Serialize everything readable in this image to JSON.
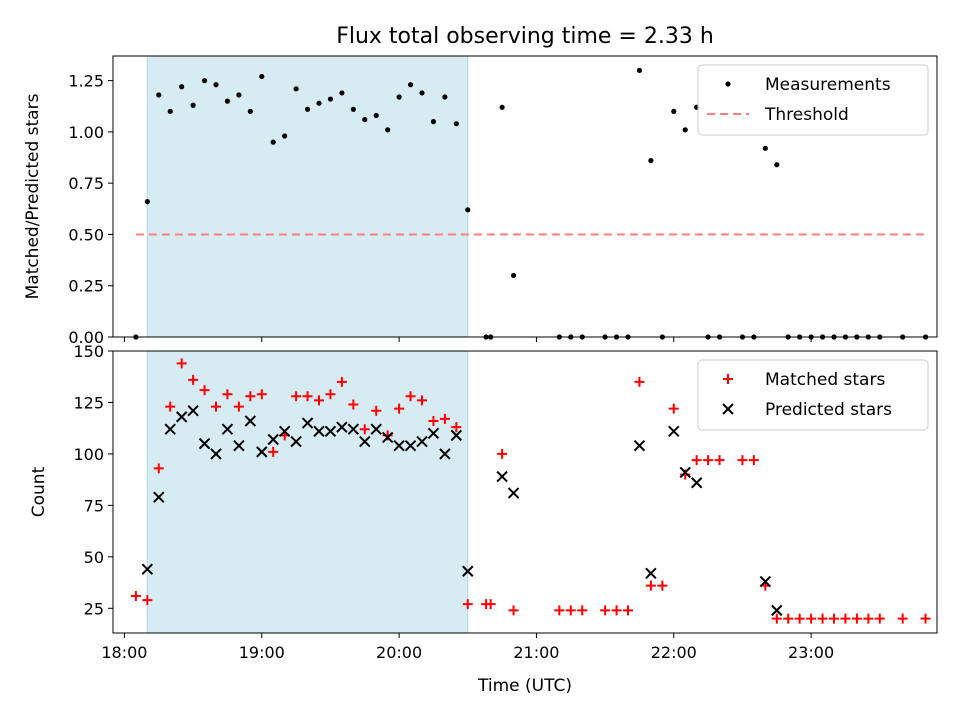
{
  "figure": {
    "title": "Flux total observing time = 2.33 h"
  },
  "shaded_interval": {
    "start": "18:10",
    "end": "20:30",
    "color": "#add8e6"
  },
  "chart_data": [
    {
      "panel": "top",
      "type": "scatter",
      "ylabel": "Matched/Predicted stars",
      "ylim": [
        0,
        1.37
      ],
      "yticks": [
        0.0,
        0.25,
        0.5,
        0.75,
        1.0,
        1.25
      ],
      "ytick_labels": [
        "0.00",
        "0.25",
        "0.50",
        "0.75",
        "1.00",
        "1.25"
      ],
      "legend_position": "top-right",
      "series": [
        {
          "name": "Measurements",
          "marker": "dot",
          "color": "#000000",
          "points": [
            [
              "18:05",
              0.0
            ],
            [
              "18:10",
              0.66
            ],
            [
              "18:15",
              1.18
            ],
            [
              "18:20",
              1.1
            ],
            [
              "18:25",
              1.22
            ],
            [
              "18:30",
              1.13
            ],
            [
              "18:35",
              1.25
            ],
            [
              "18:40",
              1.23
            ],
            [
              "18:45",
              1.15
            ],
            [
              "18:50",
              1.18
            ],
            [
              "18:55",
              1.1
            ],
            [
              "19:00",
              1.27
            ],
            [
              "19:05",
              0.95
            ],
            [
              "19:10",
              0.98
            ],
            [
              "19:15",
              1.21
            ],
            [
              "19:20",
              1.11
            ],
            [
              "19:25",
              1.14
            ],
            [
              "19:30",
              1.16
            ],
            [
              "19:35",
              1.19
            ],
            [
              "19:40",
              1.11
            ],
            [
              "19:45",
              1.06
            ],
            [
              "19:50",
              1.08
            ],
            [
              "19:55",
              1.01
            ],
            [
              "20:00",
              1.17
            ],
            [
              "20:05",
              1.23
            ],
            [
              "20:10",
              1.19
            ],
            [
              "20:15",
              1.05
            ],
            [
              "20:20",
              1.17
            ],
            [
              "20:25",
              1.04
            ],
            [
              "20:30",
              0.62
            ],
            [
              "20:38",
              0.0
            ],
            [
              "20:40",
              0.0
            ],
            [
              "20:45",
              1.12
            ],
            [
              "20:50",
              0.3
            ],
            [
              "21:10",
              0.0
            ],
            [
              "21:15",
              0.0
            ],
            [
              "21:20",
              0.0
            ],
            [
              "21:30",
              0.0
            ],
            [
              "21:35",
              0.0
            ],
            [
              "21:40",
              0.0
            ],
            [
              "21:45",
              1.3
            ],
            [
              "21:50",
              0.86
            ],
            [
              "21:55",
              0.0
            ],
            [
              "22:00",
              1.1
            ],
            [
              "22:05",
              1.01
            ],
            [
              "22:10",
              1.12
            ],
            [
              "22:15",
              0.0
            ],
            [
              "22:20",
              0.0
            ],
            [
              "22:30",
              0.0
            ],
            [
              "22:35",
              0.0
            ],
            [
              "22:40",
              0.92
            ],
            [
              "22:45",
              0.84
            ],
            [
              "22:50",
              0.0
            ],
            [
              "22:55",
              0.0
            ],
            [
              "23:00",
              0.0
            ],
            [
              "23:05",
              0.0
            ],
            [
              "23:10",
              0.0
            ],
            [
              "23:15",
              0.0
            ],
            [
              "23:20",
              0.0
            ],
            [
              "23:25",
              0.0
            ],
            [
              "23:30",
              0.0
            ],
            [
              "23:40",
              0.0
            ],
            [
              "23:50",
              0.0
            ]
          ]
        },
        {
          "name": "Threshold",
          "marker": "dashed-line",
          "color": "#ff7f7f",
          "points": [
            [
              "18:05",
              0.5
            ],
            [
              "23:50",
              0.5
            ]
          ]
        }
      ]
    },
    {
      "panel": "bottom",
      "type": "scatter",
      "ylabel": "Count",
      "xlabel": "Time (UTC)",
      "ylim": [
        13,
        150
      ],
      "yticks": [
        25,
        50,
        75,
        100,
        125,
        150
      ],
      "ytick_labels": [
        "25",
        "50",
        "75",
        "100",
        "125",
        "150"
      ],
      "xlim": [
        "17:55",
        "23:55"
      ],
      "xticks": [
        "18:00",
        "19:00",
        "20:00",
        "21:00",
        "22:00",
        "23:00"
      ],
      "xtick_labels": [
        "18:00",
        "19:00",
        "20:00",
        "21:00",
        "22:00",
        "23:00"
      ],
      "legend_position": "top-right",
      "series": [
        {
          "name": "Matched stars",
          "marker": "plus",
          "color": "#ff0000",
          "points": [
            [
              "18:05",
              31
            ],
            [
              "18:10",
              29
            ],
            [
              "18:15",
              93
            ],
            [
              "18:20",
              123
            ],
            [
              "18:25",
              144
            ],
            [
              "18:30",
              136
            ],
            [
              "18:35",
              131
            ],
            [
              "18:40",
              123
            ],
            [
              "18:45",
              129
            ],
            [
              "18:50",
              123
            ],
            [
              "18:55",
              128
            ],
            [
              "19:00",
              129
            ],
            [
              "19:05",
              101
            ],
            [
              "19:10",
              109
            ],
            [
              "19:15",
              128
            ],
            [
              "19:20",
              128
            ],
            [
              "19:25",
              126
            ],
            [
              "19:30",
              129
            ],
            [
              "19:35",
              135
            ],
            [
              "19:40",
              124
            ],
            [
              "19:45",
              112
            ],
            [
              "19:50",
              121
            ],
            [
              "19:55",
              109
            ],
            [
              "20:00",
              122
            ],
            [
              "20:05",
              128
            ],
            [
              "20:10",
              126
            ],
            [
              "20:15",
              116
            ],
            [
              "20:20",
              117
            ],
            [
              "20:25",
              113
            ],
            [
              "20:30",
              27
            ],
            [
              "20:38",
              27
            ],
            [
              "20:40",
              27
            ],
            [
              "20:45",
              100
            ],
            [
              "20:50",
              24
            ],
            [
              "21:10",
              24
            ],
            [
              "21:15",
              24
            ],
            [
              "21:20",
              24
            ],
            [
              "21:30",
              24
            ],
            [
              "21:35",
              24
            ],
            [
              "21:40",
              24
            ],
            [
              "21:45",
              135
            ],
            [
              "21:50",
              36
            ],
            [
              "21:55",
              36
            ],
            [
              "22:00",
              122
            ],
            [
              "22:05",
              90
            ],
            [
              "22:10",
              97
            ],
            [
              "22:15",
              97
            ],
            [
              "22:20",
              97
            ],
            [
              "22:30",
              97
            ],
            [
              "22:35",
              97
            ],
            [
              "22:40",
              36
            ],
            [
              "22:45",
              20
            ],
            [
              "22:50",
              20
            ],
            [
              "22:55",
              20
            ],
            [
              "23:00",
              20
            ],
            [
              "23:05",
              20
            ],
            [
              "23:10",
              20
            ],
            [
              "23:15",
              20
            ],
            [
              "23:20",
              20
            ],
            [
              "23:25",
              20
            ],
            [
              "23:30",
              20
            ],
            [
              "23:40",
              20
            ],
            [
              "23:50",
              20
            ]
          ]
        },
        {
          "name": "Predicted stars",
          "marker": "x",
          "color": "#000000",
          "points": [
            [
              "18:10",
              44
            ],
            [
              "18:15",
              79
            ],
            [
              "18:20",
              112
            ],
            [
              "18:25",
              118
            ],
            [
              "18:30",
              121
            ],
            [
              "18:35",
              105
            ],
            [
              "18:40",
              100
            ],
            [
              "18:45",
              112
            ],
            [
              "18:50",
              104
            ],
            [
              "18:55",
              116
            ],
            [
              "19:00",
              101
            ],
            [
              "19:05",
              107
            ],
            [
              "19:10",
              111
            ],
            [
              "19:15",
              106
            ],
            [
              "19:20",
              115
            ],
            [
              "19:25",
              111
            ],
            [
              "19:30",
              111
            ],
            [
              "19:35",
              113
            ],
            [
              "19:40",
              112
            ],
            [
              "19:45",
              106
            ],
            [
              "19:50",
              112
            ],
            [
              "19:55",
              108
            ],
            [
              "20:00",
              104
            ],
            [
              "20:05",
              104
            ],
            [
              "20:10",
              106
            ],
            [
              "20:15",
              110
            ],
            [
              "20:20",
              100
            ],
            [
              "20:25",
              109
            ],
            [
              "20:30",
              43
            ],
            [
              "20:45",
              89
            ],
            [
              "20:50",
              81
            ],
            [
              "21:45",
              104
            ],
            [
              "21:50",
              42
            ],
            [
              "22:00",
              111
            ],
            [
              "22:05",
              91
            ],
            [
              "22:10",
              86
            ],
            [
              "22:40",
              38
            ],
            [
              "22:45",
              24
            ]
          ]
        }
      ]
    }
  ]
}
